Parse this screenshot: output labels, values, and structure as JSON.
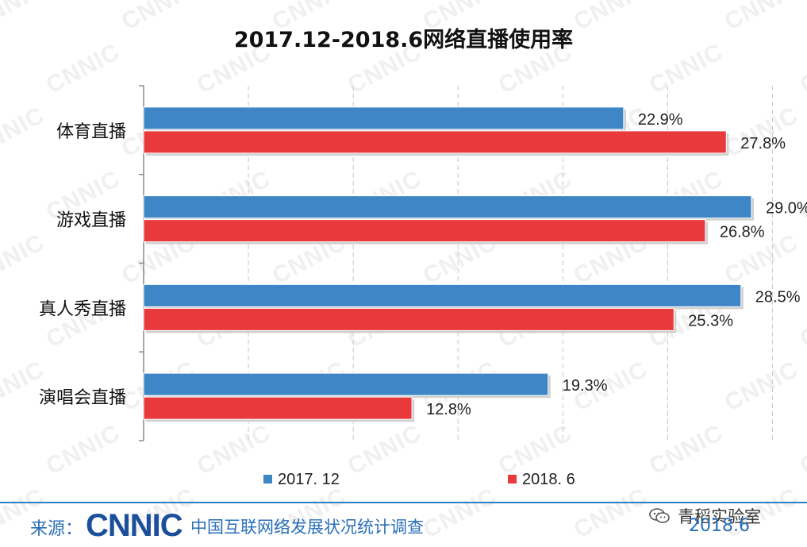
{
  "watermark_text": "CNNIC",
  "chart_data": {
    "type": "bar",
    "orientation": "horizontal",
    "title": "2017.12-2018.6网络直播使用率",
    "categories": [
      "体育直播",
      "游戏直播",
      "真人秀直播",
      "演唱会直播"
    ],
    "series": [
      {
        "name": "2017. 12",
        "values": [
          22.9,
          29.0,
          28.5,
          19.3
        ],
        "labels": [
          "22.9%",
          "29.0%",
          "28.5%",
          "19.3%"
        ],
        "color": "#3f86c6"
      },
      {
        "name": "2018. 6",
        "values": [
          27.8,
          26.8,
          25.3,
          12.8
        ],
        "labels": [
          "27.8%",
          "26.8%",
          "25.3%",
          "12.8%"
        ],
        "color": "#e8393d"
      }
    ],
    "xlim": [
      0,
      35
    ],
    "grid": true,
    "legend_position": "bottom"
  },
  "footer": {
    "source_label": "来源：",
    "logo_text": "CNNIC",
    "org_name": "中国互联网络发展状况统计调查",
    "wechat_name": "青稻实验室",
    "date": "2018.6"
  }
}
